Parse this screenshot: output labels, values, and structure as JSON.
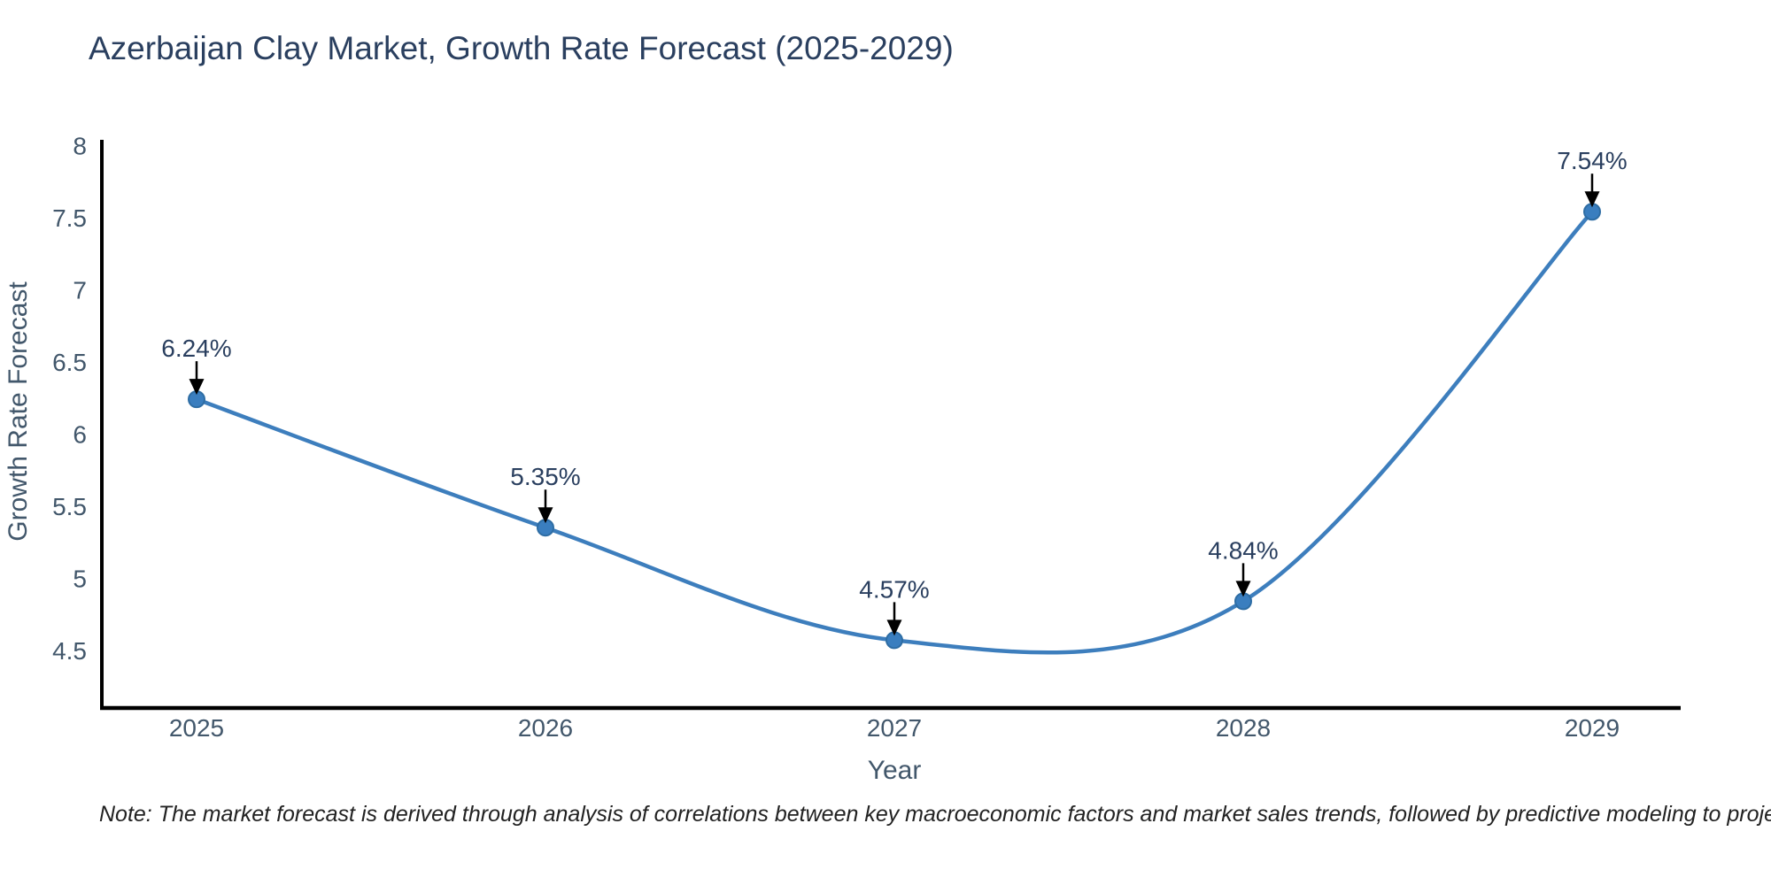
{
  "title": "Azerbaijan Clay Market, Growth Rate Forecast (2025-2029)",
  "note": "Note: The market forecast is derived through analysis of correlations between key macroeconomic factors and market sales trends, followed by predictive modeling to project future sales",
  "chart_data": {
    "type": "line",
    "line_shape": "spline",
    "x": [
      2025,
      2026,
      2027,
      2028,
      2029
    ],
    "xticklabels": [
      "2025",
      "2026",
      "2027",
      "2028",
      "2029"
    ],
    "series": [
      {
        "name": "Growth Rate Forecast",
        "values": [
          6.24,
          5.35,
          4.57,
          4.84,
          7.54
        ],
        "point_labels": [
          "6.24%",
          "5.35%",
          "4.57%",
          "4.84%",
          "7.54%"
        ]
      }
    ],
    "xlabel": "Year",
    "ylabel": "Growth Rate Forecast",
    "yticks": [
      4.5,
      5,
      5.5,
      6,
      6.5,
      7,
      7.5,
      8
    ],
    "ylim": [
      4.1,
      8.02
    ],
    "grid": false,
    "legend_position": "none",
    "colors": {
      "line": "#3d7ebd",
      "marker_fill": "#3a7ebf",
      "marker_edge": "#2e6da4",
      "arrow": "#000000",
      "axis_line": "#000000",
      "tick_text": "#42576b",
      "annotation_text": "#2a3f5f",
      "title_text": "#2a3f5f"
    }
  }
}
